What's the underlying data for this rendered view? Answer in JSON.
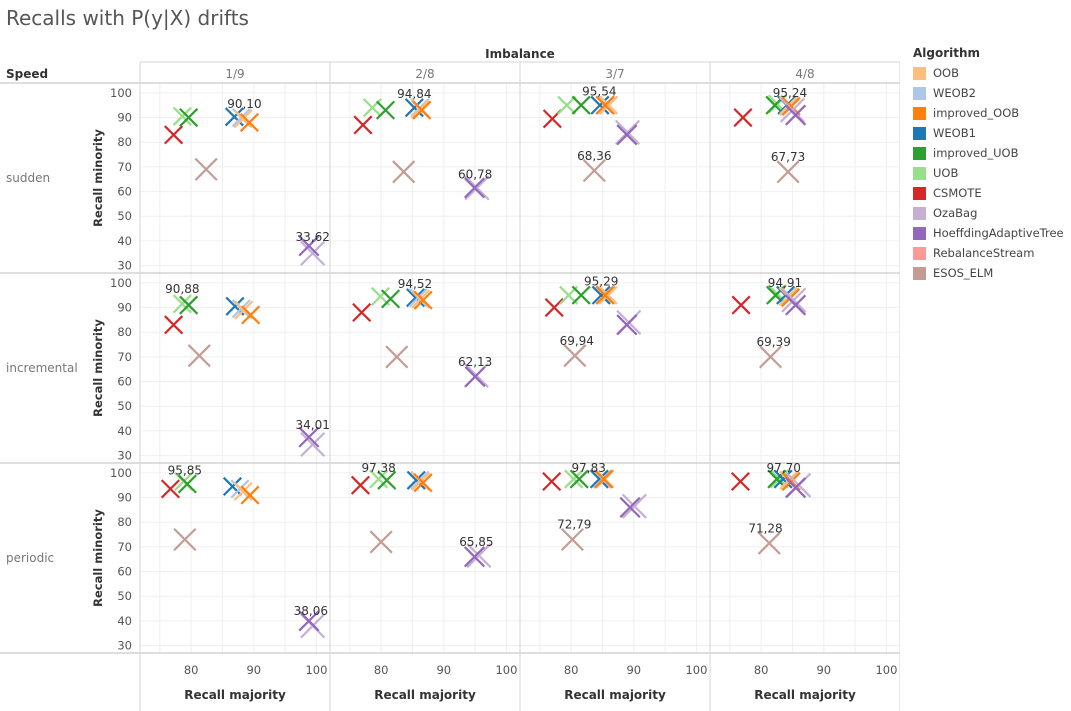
{
  "title": "Recalls with P(y|X) drifts",
  "chart_data": {
    "type": "scatter",
    "marker": "x",
    "column_header": "Imbalance",
    "row_header": "Speed",
    "columns": [
      "1/9",
      "2/8",
      "3/7",
      "4/8"
    ],
    "rows": [
      "sudden",
      "incremental",
      "periodic"
    ],
    "xlabel": "Recall majority",
    "ylabel": "Recall minority",
    "xlim": [
      72,
      102
    ],
    "ylim": [
      27,
      104
    ],
    "xticks": [
      80,
      90,
      100
    ],
    "yticks": [
      30,
      40,
      50,
      60,
      70,
      80,
      90,
      100
    ],
    "legend": {
      "title": "Algorithm",
      "items": [
        {
          "name": "OOB",
          "color": "#ffbe7d"
        },
        {
          "name": "WEOB2",
          "color": "#aec7e8"
        },
        {
          "name": "improved_OOB",
          "color": "#ff7f0e"
        },
        {
          "name": "WEOB1",
          "color": "#1f77b4"
        },
        {
          "name": "improved_UOB",
          "color": "#2ca02c"
        },
        {
          "name": "UOB",
          "color": "#98df8a"
        },
        {
          "name": "CSMOTE",
          "color": "#d62728"
        },
        {
          "name": "OzaBag",
          "color": "#c5b0d5"
        },
        {
          "name": "HoeffdingAdaptiveTree",
          "color": "#9467bd"
        },
        {
          "name": "RebalanceStream",
          "color": "#ff9896"
        },
        {
          "name": "ESOS_ELM",
          "color": "#c49c94"
        }
      ]
    },
    "panels": [
      {
        "row": 0,
        "col": 0,
        "points": [
          {
            "a": "CSMOTE",
            "x": 77.2,
            "y": 83.0
          },
          {
            "a": "UOB",
            "x": 78.6,
            "y": 90.5
          },
          {
            "a": "improved_UOB",
            "x": 79.6,
            "y": 90.0
          },
          {
            "a": "ESOS_ELM",
            "x": 82.4,
            "y": 69.0
          },
          {
            "a": "WEOB1",
            "x": 86.9,
            "y": 90.3
          },
          {
            "a": "WEOB2",
            "x": 88.0,
            "y": 90.0
          },
          {
            "a": "OOB",
            "x": 88.3,
            "y": 89.5
          },
          {
            "a": "improved_OOB",
            "x": 89.3,
            "y": 88.0
          },
          {
            "a": "OzaBag",
            "x": 99.4,
            "y": 35.0
          },
          {
            "a": "HoeffdingAdaptiveTree",
            "x": 98.8,
            "y": 38.0
          }
        ],
        "labels": [
          {
            "text": "90,10",
            "x": 88.5,
            "y": 95.5
          },
          {
            "text": "33,62",
            "x": 99.4,
            "y": 41.5
          }
        ]
      },
      {
        "row": 0,
        "col": 1,
        "points": [
          {
            "a": "CSMOTE",
            "x": 77.1,
            "y": 87.0
          },
          {
            "a": "UOB",
            "x": 78.6,
            "y": 94.0
          },
          {
            "a": "improved_UOB",
            "x": 80.7,
            "y": 93.0
          },
          {
            "a": "ESOS_ELM",
            "x": 83.6,
            "y": 68.0
          },
          {
            "a": "WEOB1",
            "x": 85.3,
            "y": 94.0
          },
          {
            "a": "WEOB2",
            "x": 86.2,
            "y": 94.0
          },
          {
            "a": "OOB",
            "x": 86.2,
            "y": 93.5
          },
          {
            "a": "improved_OOB",
            "x": 86.5,
            "y": 93.0
          },
          {
            "a": "OzaBag",
            "x": 95.3,
            "y": 61.5
          },
          {
            "a": "HoeffdingAdaptiveTree",
            "x": 94.9,
            "y": 61.5
          }
        ],
        "labels": [
          {
            "text": "94,84",
            "x": 85.3,
            "y": 99.5
          },
          {
            "text": "60,78",
            "x": 95.0,
            "y": 67.0
          }
        ]
      },
      {
        "row": 0,
        "col": 2,
        "points": [
          {
            "a": "CSMOTE",
            "x": 77.0,
            "y": 89.5
          },
          {
            "a": "UOB",
            "x": 79.3,
            "y": 95.0
          },
          {
            "a": "improved_UOB",
            "x": 81.6,
            "y": 95.0
          },
          {
            "a": "ESOS_ELM",
            "x": 83.7,
            "y": 68.5
          },
          {
            "a": "WEOB1",
            "x": 84.6,
            "y": 95.0
          },
          {
            "a": "WEOB2",
            "x": 85.6,
            "y": 95.0
          },
          {
            "a": "OOB",
            "x": 86.0,
            "y": 95.0
          },
          {
            "a": "improved_OOB",
            "x": 85.4,
            "y": 95.0
          },
          {
            "a": "OzaBag",
            "x": 89.0,
            "y": 84.0
          },
          {
            "a": "HoeffdingAdaptiveTree",
            "x": 88.9,
            "y": 83.0
          }
        ],
        "labels": [
          {
            "text": "95,54",
            "x": 84.5,
            "y": 100.5
          },
          {
            "text": "68,36",
            "x": 83.7,
            "y": 74.5
          }
        ]
      },
      {
        "row": 0,
        "col": 3,
        "points": [
          {
            "a": "CSMOTE",
            "x": 77.1,
            "y": 90.0
          },
          {
            "a": "UOB",
            "x": 82.6,
            "y": 95.5
          },
          {
            "a": "improved_UOB",
            "x": 82.2,
            "y": 95.0
          },
          {
            "a": "ESOS_ELM",
            "x": 84.3,
            "y": 68.0
          },
          {
            "a": "WEOB1",
            "x": 84.1,
            "y": 95.0
          },
          {
            "a": "WEOB2",
            "x": 84.4,
            "y": 94.5
          },
          {
            "a": "OOB",
            "x": 84.4,
            "y": 95.0
          },
          {
            "a": "improved_OOB",
            "x": 84.8,
            "y": 94.5
          },
          {
            "a": "OzaBag",
            "x": 85.0,
            "y": 93.0
          },
          {
            "a": "HoeffdingAdaptiveTree",
            "x": 85.5,
            "y": 91.0
          }
        ],
        "labels": [
          {
            "text": "95,24",
            "x": 84.6,
            "y": 100.0
          },
          {
            "text": "67,73",
            "x": 84.3,
            "y": 74.0
          }
        ]
      },
      {
        "row": 1,
        "col": 0,
        "points": [
          {
            "a": "CSMOTE",
            "x": 77.2,
            "y": 83.0
          },
          {
            "a": "UOB",
            "x": 78.6,
            "y": 91.5
          },
          {
            "a": "improved_UOB",
            "x": 79.6,
            "y": 91.0
          },
          {
            "a": "ESOS_ELM",
            "x": 81.3,
            "y": 70.5
          },
          {
            "a": "WEOB1",
            "x": 87.0,
            "y": 90.5
          },
          {
            "a": "WEOB2",
            "x": 88.0,
            "y": 89.5
          },
          {
            "a": "OOB",
            "x": 88.4,
            "y": 89.0
          },
          {
            "a": "improved_OOB",
            "x": 89.5,
            "y": 87.0
          },
          {
            "a": "OzaBag",
            "x": 99.4,
            "y": 34.5
          },
          {
            "a": "HoeffdingAdaptiveTree",
            "x": 98.8,
            "y": 37.5
          }
        ],
        "labels": [
          {
            "text": "90,88",
            "x": 78.6,
            "y": 97.5
          },
          {
            "text": "34,01",
            "x": 99.4,
            "y": 42.5
          }
        ]
      },
      {
        "row": 1,
        "col": 1,
        "points": [
          {
            "a": "CSMOTE",
            "x": 76.9,
            "y": 88.0
          },
          {
            "a": "UOB",
            "x": 79.9,
            "y": 94.5
          },
          {
            "a": "improved_UOB",
            "x": 81.5,
            "y": 93.5
          },
          {
            "a": "ESOS_ELM",
            "x": 82.5,
            "y": 70.0
          },
          {
            "a": "WEOB1",
            "x": 85.5,
            "y": 94.0
          },
          {
            "a": "WEOB2",
            "x": 85.9,
            "y": 94.0
          },
          {
            "a": "OOB",
            "x": 86.3,
            "y": 93.5
          },
          {
            "a": "improved_OOB",
            "x": 86.7,
            "y": 93.0
          },
          {
            "a": "OzaBag",
            "x": 95.2,
            "y": 62.5
          },
          {
            "a": "HoeffdingAdaptiveTree",
            "x": 95.0,
            "y": 62.0
          }
        ],
        "labels": [
          {
            "text": "94,52",
            "x": 85.4,
            "y": 99.5
          },
          {
            "text": "62,13",
            "x": 95.0,
            "y": 68.0
          }
        ]
      },
      {
        "row": 1,
        "col": 2,
        "points": [
          {
            "a": "CSMOTE",
            "x": 77.3,
            "y": 90.0
          },
          {
            "a": "UOB",
            "x": 79.6,
            "y": 95.0
          },
          {
            "a": "improved_UOB",
            "x": 81.6,
            "y": 95.0
          },
          {
            "a": "ESOS_ELM",
            "x": 80.6,
            "y": 70.5
          },
          {
            "a": "WEOB1",
            "x": 84.8,
            "y": 95.0
          },
          {
            "a": "WEOB2",
            "x": 85.6,
            "y": 95.0
          },
          {
            "a": "OOB",
            "x": 85.9,
            "y": 95.0
          },
          {
            "a": "improved_OOB",
            "x": 85.4,
            "y": 95.0
          },
          {
            "a": "OzaBag",
            "x": 89.2,
            "y": 84.0
          },
          {
            "a": "HoeffdingAdaptiveTree",
            "x": 88.9,
            "y": 83.0
          }
        ],
        "labels": [
          {
            "text": "95,29",
            "x": 84.8,
            "y": 100.5
          },
          {
            "text": "69,94",
            "x": 80.9,
            "y": 76.5
          }
        ]
      },
      {
        "row": 1,
        "col": 3,
        "points": [
          {
            "a": "CSMOTE",
            "x": 76.8,
            "y": 91.0
          },
          {
            "a": "UOB",
            "x": 82.6,
            "y": 95.5
          },
          {
            "a": "improved_UOB",
            "x": 82.3,
            "y": 95.0
          },
          {
            "a": "ESOS_ELM",
            "x": 81.5,
            "y": 70.0
          },
          {
            "a": "WEOB1",
            "x": 83.9,
            "y": 95.0
          },
          {
            "a": "WEOB2",
            "x": 84.3,
            "y": 94.5
          },
          {
            "a": "OOB",
            "x": 84.4,
            "y": 94.5
          },
          {
            "a": "improved_OOB",
            "x": 84.7,
            "y": 94.0
          },
          {
            "a": "OzaBag",
            "x": 85.2,
            "y": 93.0
          },
          {
            "a": "HoeffdingAdaptiveTree",
            "x": 85.5,
            "y": 91.0
          }
        ],
        "labels": [
          {
            "text": "94,91",
            "x": 83.8,
            "y": 100.0
          },
          {
            "text": "69,39",
            "x": 82.0,
            "y": 76.0
          }
        ]
      },
      {
        "row": 2,
        "col": 0,
        "points": [
          {
            "a": "CSMOTE",
            "x": 76.7,
            "y": 93.5
          },
          {
            "a": "UOB",
            "x": 78.8,
            "y": 96.5
          },
          {
            "a": "improved_UOB",
            "x": 79.4,
            "y": 95.5
          },
          {
            "a": "ESOS_ELM",
            "x": 79.0,
            "y": 73.0
          },
          {
            "a": "WEOB1",
            "x": 86.6,
            "y": 94.5
          },
          {
            "a": "WEOB2",
            "x": 87.8,
            "y": 93.5
          },
          {
            "a": "OOB",
            "x": 88.3,
            "y": 92.5
          },
          {
            "a": "improved_OOB",
            "x": 89.4,
            "y": 91.0
          },
          {
            "a": "OzaBag",
            "x": 99.4,
            "y": 38.0
          },
          {
            "a": "HoeffdingAdaptiveTree",
            "x": 98.8,
            "y": 40.0
          }
        ],
        "labels": [
          {
            "text": "95,85",
            "x": 79.0,
            "y": 101.0
          },
          {
            "text": "38,06",
            "x": 99.1,
            "y": 44.0
          }
        ]
      },
      {
        "row": 2,
        "col": 1,
        "points": [
          {
            "a": "CSMOTE",
            "x": 76.7,
            "y": 95.0
          },
          {
            "a": "UOB",
            "x": 79.6,
            "y": 97.5
          },
          {
            "a": "improved_UOB",
            "x": 80.9,
            "y": 97.0
          },
          {
            "a": "ESOS_ELM",
            "x": 80.0,
            "y": 72.0
          },
          {
            "a": "WEOB1",
            "x": 85.6,
            "y": 97.0
          },
          {
            "a": "WEOB2",
            "x": 86.2,
            "y": 97.0
          },
          {
            "a": "OOB",
            "x": 86.3,
            "y": 96.5
          },
          {
            "a": "improved_OOB",
            "x": 86.7,
            "y": 96.0
          },
          {
            "a": "OzaBag",
            "x": 95.6,
            "y": 66.5
          },
          {
            "a": "HoeffdingAdaptiveTree",
            "x": 94.9,
            "y": 66.0
          }
        ],
        "labels": [
          {
            "text": "97,38",
            "x": 79.6,
            "y": 102.0
          },
          {
            "text": "65,85",
            "x": 95.2,
            "y": 72.0
          }
        ]
      },
      {
        "row": 2,
        "col": 2,
        "points": [
          {
            "a": "CSMOTE",
            "x": 76.9,
            "y": 96.5
          },
          {
            "a": "UOB",
            "x": 80.4,
            "y": 97.5
          },
          {
            "a": "improved_UOB",
            "x": 81.3,
            "y": 97.5
          },
          {
            "a": "ESOS_ELM",
            "x": 80.2,
            "y": 73.0
          },
          {
            "a": "WEOB1",
            "x": 84.5,
            "y": 97.5
          },
          {
            "a": "WEOB2",
            "x": 85.0,
            "y": 97.5
          },
          {
            "a": "OOB",
            "x": 85.4,
            "y": 97.5
          },
          {
            "a": "improved_OOB",
            "x": 85.2,
            "y": 97.5
          },
          {
            "a": "OzaBag",
            "x": 90.1,
            "y": 86.5
          },
          {
            "a": "HoeffdingAdaptiveTree",
            "x": 89.4,
            "y": 86.0
          }
        ],
        "labels": [
          {
            "text": "97,83",
            "x": 82.8,
            "y": 102.0
          },
          {
            "text": "72,79",
            "x": 80.5,
            "y": 79.0
          }
        ]
      },
      {
        "row": 2,
        "col": 3,
        "points": [
          {
            "a": "CSMOTE",
            "x": 76.7,
            "y": 96.5
          },
          {
            "a": "UOB",
            "x": 82.9,
            "y": 97.5
          },
          {
            "a": "improved_UOB",
            "x": 82.5,
            "y": 97.5
          },
          {
            "a": "ESOS_ELM",
            "x": 81.3,
            "y": 71.5
          },
          {
            "a": "WEOB1",
            "x": 83.5,
            "y": 97.5
          },
          {
            "a": "WEOB2",
            "x": 84.6,
            "y": 97.0
          },
          {
            "a": "OOB",
            "x": 84.4,
            "y": 97.0
          },
          {
            "a": "improved_OOB",
            "x": 84.8,
            "y": 96.5
          },
          {
            "a": "OzaBag",
            "x": 86.0,
            "y": 95.0
          },
          {
            "a": "HoeffdingAdaptiveTree",
            "x": 85.5,
            "y": 94.0
          }
        ],
        "labels": [
          {
            "text": "97,70",
            "x": 83.6,
            "y": 102.0
          },
          {
            "text": "71,28",
            "x": 80.7,
            "y": 77.5
          }
        ]
      }
    ]
  }
}
